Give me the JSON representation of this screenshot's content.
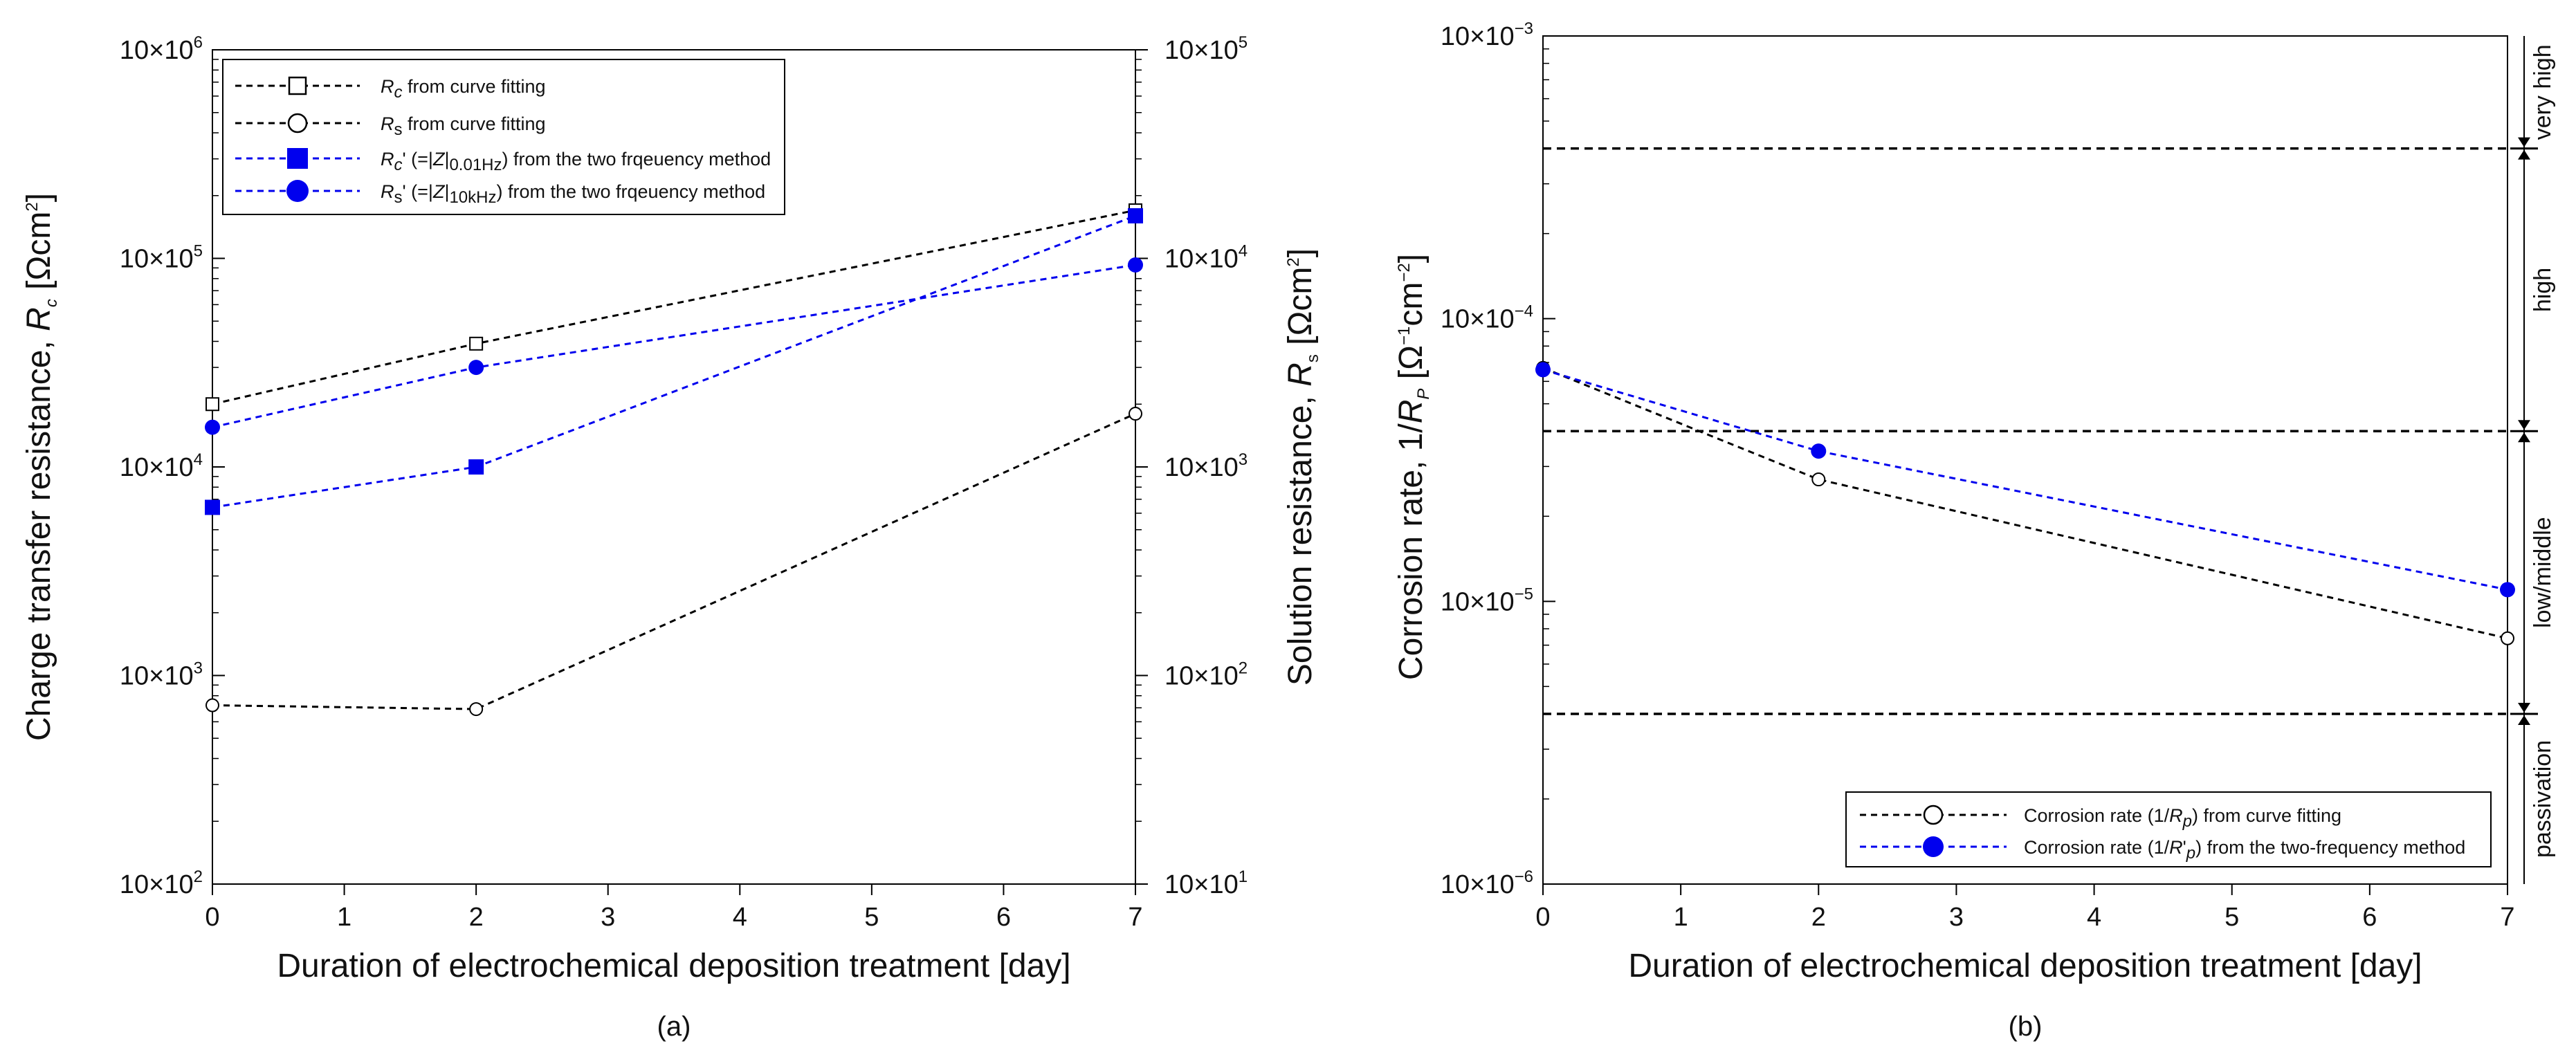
{
  "chart_data": [
    {
      "panel": "(a)",
      "type": "line",
      "yscale": "log",
      "xlabel": "Duration of electrochemical deposition treatment [day]",
      "ylabel_left": "Charge transfer resistance, R_c [Ωcm²]",
      "ylabel_right": "Solution resistance, R_s [Ωcm²]",
      "x_ticks": [
        "0",
        "1",
        "2",
        "3",
        "4",
        "5",
        "6",
        "7"
      ],
      "xlim": [
        0,
        7
      ],
      "ylim_left": [
        100,
        1000000
      ],
      "ylim_right": [
        10,
        100000
      ],
      "y_ticks_left": [
        {
          "base": "10×10",
          "exp": "2"
        },
        {
          "base": "10×10",
          "exp": "3"
        },
        {
          "base": "10×10",
          "exp": "4"
        },
        {
          "base": "10×10",
          "exp": "5"
        },
        {
          "base": "10×10",
          "exp": "6"
        }
      ],
      "y_ticks_right": [
        {
          "base": "10×10",
          "exp": "1"
        },
        {
          "base": "10×10",
          "exp": "2"
        },
        {
          "base": "10×10",
          "exp": "3"
        },
        {
          "base": "10×10",
          "exp": "4"
        },
        {
          "base": "10×10",
          "exp": "5"
        }
      ],
      "x": [
        0,
        2,
        7
      ],
      "series": [
        {
          "name": "Rc from curve fitting",
          "axis": "left",
          "color": "#000000",
          "marker": "open-square",
          "values": [
            20000,
            39000,
            170000
          ]
        },
        {
          "name": "Rs from curve fitting",
          "axis": "right",
          "color": "#000000",
          "marker": "open-circle",
          "values": [
            72,
            69,
            1800
          ]
        },
        {
          "name": "Rc' (=|Z|0.01Hz) from the two frqeuency method",
          "axis": "left",
          "color": "#0000ee",
          "marker": "filled-square",
          "values": [
            6400,
            10000,
            160000
          ]
        },
        {
          "name": "Rs' (=|Z|10kHz) from the two frqeuency method",
          "axis": "right",
          "color": "#0000ee",
          "marker": "filled-circle",
          "values": [
            1550,
            3000,
            9300
          ]
        }
      ]
    },
    {
      "panel": "(b)",
      "type": "line",
      "yscale": "log",
      "xlabel": "Duration of electrochemical deposition treatment [day]",
      "ylabel": "Corrosion rate, 1/R_P [Ω⁻¹cm⁻²]",
      "x_ticks": [
        "0",
        "1",
        "2",
        "3",
        "4",
        "5",
        "6",
        "7"
      ],
      "xlim": [
        0,
        7
      ],
      "ylim": [
        1e-06,
        0.001
      ],
      "y_ticks": [
        {
          "base": "10×10",
          "exp": "−6"
        },
        {
          "base": "10×10",
          "exp": "−5"
        },
        {
          "base": "10×10",
          "exp": "−4"
        },
        {
          "base": "10×10",
          "exp": "−3"
        }
      ],
      "x": [
        0,
        2,
        7
      ],
      "series": [
        {
          "name": "Corrosion rate (1/Rp) from curve fitting",
          "color": "#000000",
          "marker": "open-circle",
          "values": [
            6.7e-05,
            2.7e-05,
            7.4e-06
          ]
        },
        {
          "name": "Corrosion rate (1/R'p) from the two-frequency method",
          "color": "#0000ee",
          "marker": "filled-circle",
          "values": [
            6.6e-05,
            3.4e-05,
            1.1e-05
          ]
        }
      ],
      "thresholds": [
        0.0004,
        4e-05,
        4e-06
      ],
      "regions": [
        "very high",
        "high",
        "low/middle",
        "passivation"
      ]
    }
  ]
}
